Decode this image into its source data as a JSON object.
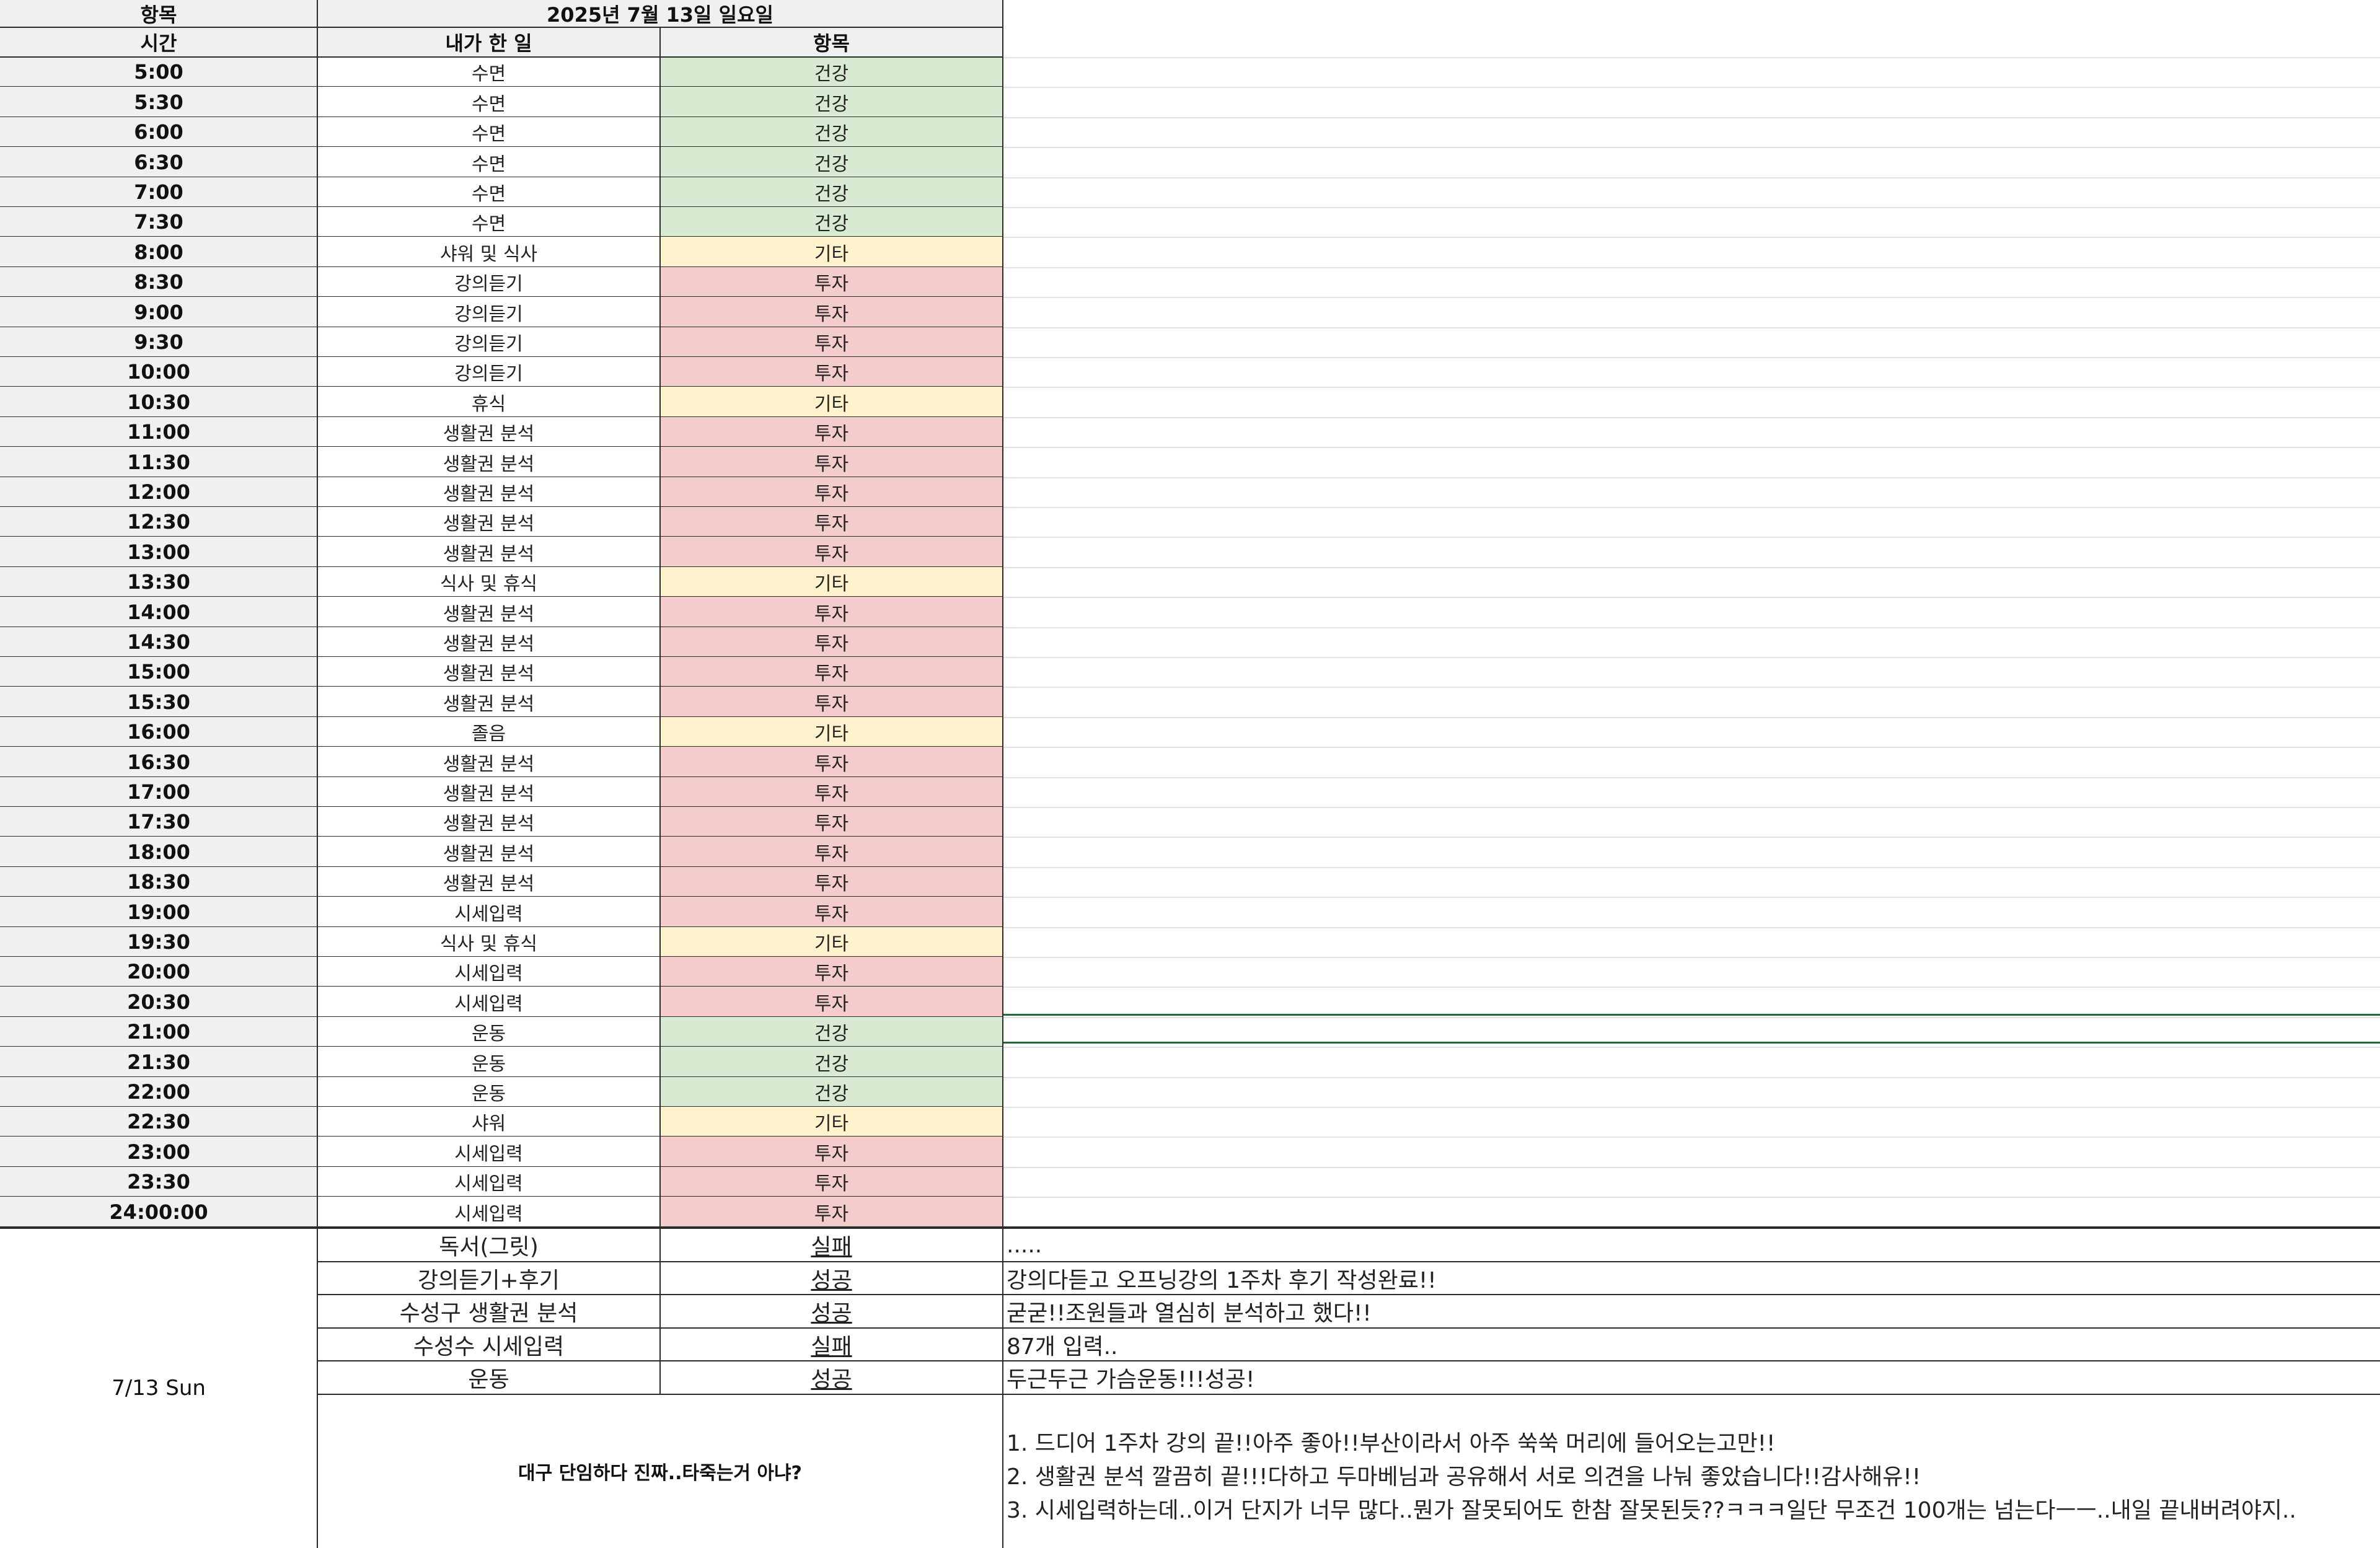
{
  "header": {
    "item_label": "항목",
    "date_title": "2025년 7월 13일 일요일",
    "time_label": "시간",
    "activity_label": "내가 한 일",
    "category_label": "항목"
  },
  "colors": {
    "health": "#d9ead3",
    "etc": "#fff2cc",
    "invest": "#f4cccc",
    "header_bg": "#f0f0f0",
    "selection": "#1e6b33"
  },
  "rows": [
    {
      "time": "5:00",
      "activity": "수면",
      "category": "건강",
      "type": "health"
    },
    {
      "time": "5:30",
      "activity": "수면",
      "category": "건강",
      "type": "health"
    },
    {
      "time": "6:00",
      "activity": "수면",
      "category": "건강",
      "type": "health"
    },
    {
      "time": "6:30",
      "activity": "수면",
      "category": "건강",
      "type": "health"
    },
    {
      "time": "7:00",
      "activity": "수면",
      "category": "건강",
      "type": "health"
    },
    {
      "time": "7:30",
      "activity": "수면",
      "category": "건강",
      "type": "health"
    },
    {
      "time": "8:00",
      "activity": "샤워 및 식사",
      "category": "기타",
      "type": "etc"
    },
    {
      "time": "8:30",
      "activity": "강의듣기",
      "category": "투자",
      "type": "invest"
    },
    {
      "time": "9:00",
      "activity": "강의듣기",
      "category": "투자",
      "type": "invest"
    },
    {
      "time": "9:30",
      "activity": "강의듣기",
      "category": "투자",
      "type": "invest"
    },
    {
      "time": "10:00",
      "activity": "강의듣기",
      "category": "투자",
      "type": "invest"
    },
    {
      "time": "10:30",
      "activity": "휴식",
      "category": "기타",
      "type": "etc"
    },
    {
      "time": "11:00",
      "activity": "생활권 분석",
      "category": "투자",
      "type": "invest"
    },
    {
      "time": "11:30",
      "activity": "생활권 분석",
      "category": "투자",
      "type": "invest"
    },
    {
      "time": "12:00",
      "activity": "생활권 분석",
      "category": "투자",
      "type": "invest"
    },
    {
      "time": "12:30",
      "activity": "생활권 분석",
      "category": "투자",
      "type": "invest"
    },
    {
      "time": "13:00",
      "activity": "생활권 분석",
      "category": "투자",
      "type": "invest"
    },
    {
      "time": "13:30",
      "activity": "식사 및 휴식",
      "category": "기타",
      "type": "etc"
    },
    {
      "time": "14:00",
      "activity": "생활권 분석",
      "category": "투자",
      "type": "invest"
    },
    {
      "time": "14:30",
      "activity": "생활권 분석",
      "category": "투자",
      "type": "invest"
    },
    {
      "time": "15:00",
      "activity": "생활권 분석",
      "category": "투자",
      "type": "invest"
    },
    {
      "time": "15:30",
      "activity": "생활권 분석",
      "category": "투자",
      "type": "invest"
    },
    {
      "time": "16:00",
      "activity": "졸음",
      "category": "기타",
      "type": "etc"
    },
    {
      "time": "16:30",
      "activity": "생활권 분석",
      "category": "투자",
      "type": "invest"
    },
    {
      "time": "17:00",
      "activity": "생활권 분석",
      "category": "투자",
      "type": "invest"
    },
    {
      "time": "17:30",
      "activity": "생활권 분석",
      "category": "투자",
      "type": "invest"
    },
    {
      "time": "18:00",
      "activity": "생활권 분석",
      "category": "투자",
      "type": "invest"
    },
    {
      "time": "18:30",
      "activity": "생활권 분석",
      "category": "투자",
      "type": "invest"
    },
    {
      "time": "19:00",
      "activity": "시세입력",
      "category": "투자",
      "type": "invest"
    },
    {
      "time": "19:30",
      "activity": "식사 및 휴식",
      "category": "기타",
      "type": "etc"
    },
    {
      "time": "20:00",
      "activity": "시세입력",
      "category": "투자",
      "type": "invest"
    },
    {
      "time": "20:30",
      "activity": "시세입력",
      "category": "투자",
      "type": "invest"
    },
    {
      "time": "21:00",
      "activity": "운동",
      "category": "건강",
      "type": "health"
    },
    {
      "time": "21:30",
      "activity": "운동",
      "category": "건강",
      "type": "health"
    },
    {
      "time": "22:00",
      "activity": "운동",
      "category": "건강",
      "type": "health"
    },
    {
      "time": "22:30",
      "activity": "샤워",
      "category": "기타",
      "type": "etc"
    },
    {
      "time": "23:00",
      "activity": "시세입력",
      "category": "투자",
      "type": "invest"
    },
    {
      "time": "23:30",
      "activity": "시세입력",
      "category": "투자",
      "type": "invest"
    },
    {
      "time": "24:00:00",
      "activity": "시세입력",
      "category": "투자",
      "type": "invest"
    }
  ],
  "summary": {
    "day_label": "7/13 Sun",
    "goals": [
      {
        "goal": "독서(그릿)",
        "result": "실패",
        "note": "....."
      },
      {
        "goal": "강의듣기+후기",
        "result": "성공",
        "note": "강의다듣고 오프닝강의 1주차 후기 작성완료!!"
      },
      {
        "goal": "수성구 생활권 분석",
        "result": "성공",
        "note": "굳굳!!조원들과 열심히 분석하고 했다!!"
      },
      {
        "goal": "수성수 시세입력",
        "result": "실패",
        "note": "87개 입력.."
      },
      {
        "goal": "운동",
        "result": "성공",
        "note": "두근두근 가슴운동!!!성공!"
      }
    ],
    "reflection_title": "대구 단임하다 진짜..타죽는거 아냐?",
    "reflection_lines": [
      "1. 드디어 1주차 강의 끝!!아주 좋아!!부산이라서 아주 쑥쑥 머리에 들어오는고만!!",
      "2. 생활권 분석 깔끔히 끝!!!다하고 두마베님과 공유해서 서로 의견을 나눠 좋았습니다!!감사해유!!",
      "3. 시세입력하는데..이거 단지가 너무 많다..뭔가 잘못되어도 한참 잘못된듯??ㅋㅋㅋ일단 무조건 100개는 넘는다ㅡㅡ..내일 끝내버려야지.."
    ]
  }
}
